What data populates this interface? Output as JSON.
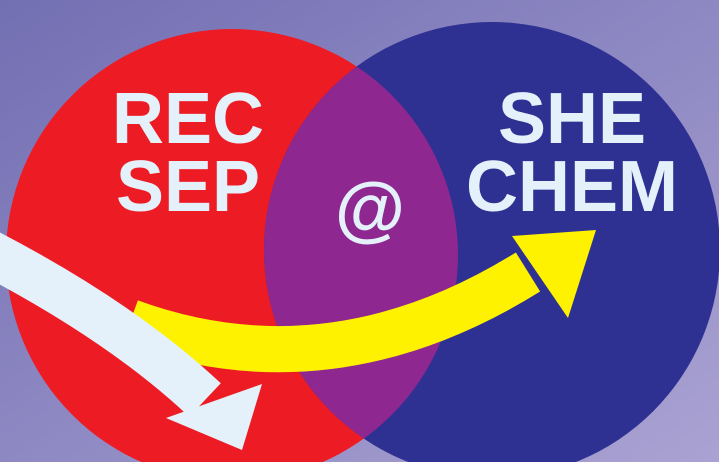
{
  "texts": {
    "left": [
      "REC",
      "SEP"
    ],
    "center": "@",
    "right": [
      "SHE",
      "CHEM"
    ]
  }
}
